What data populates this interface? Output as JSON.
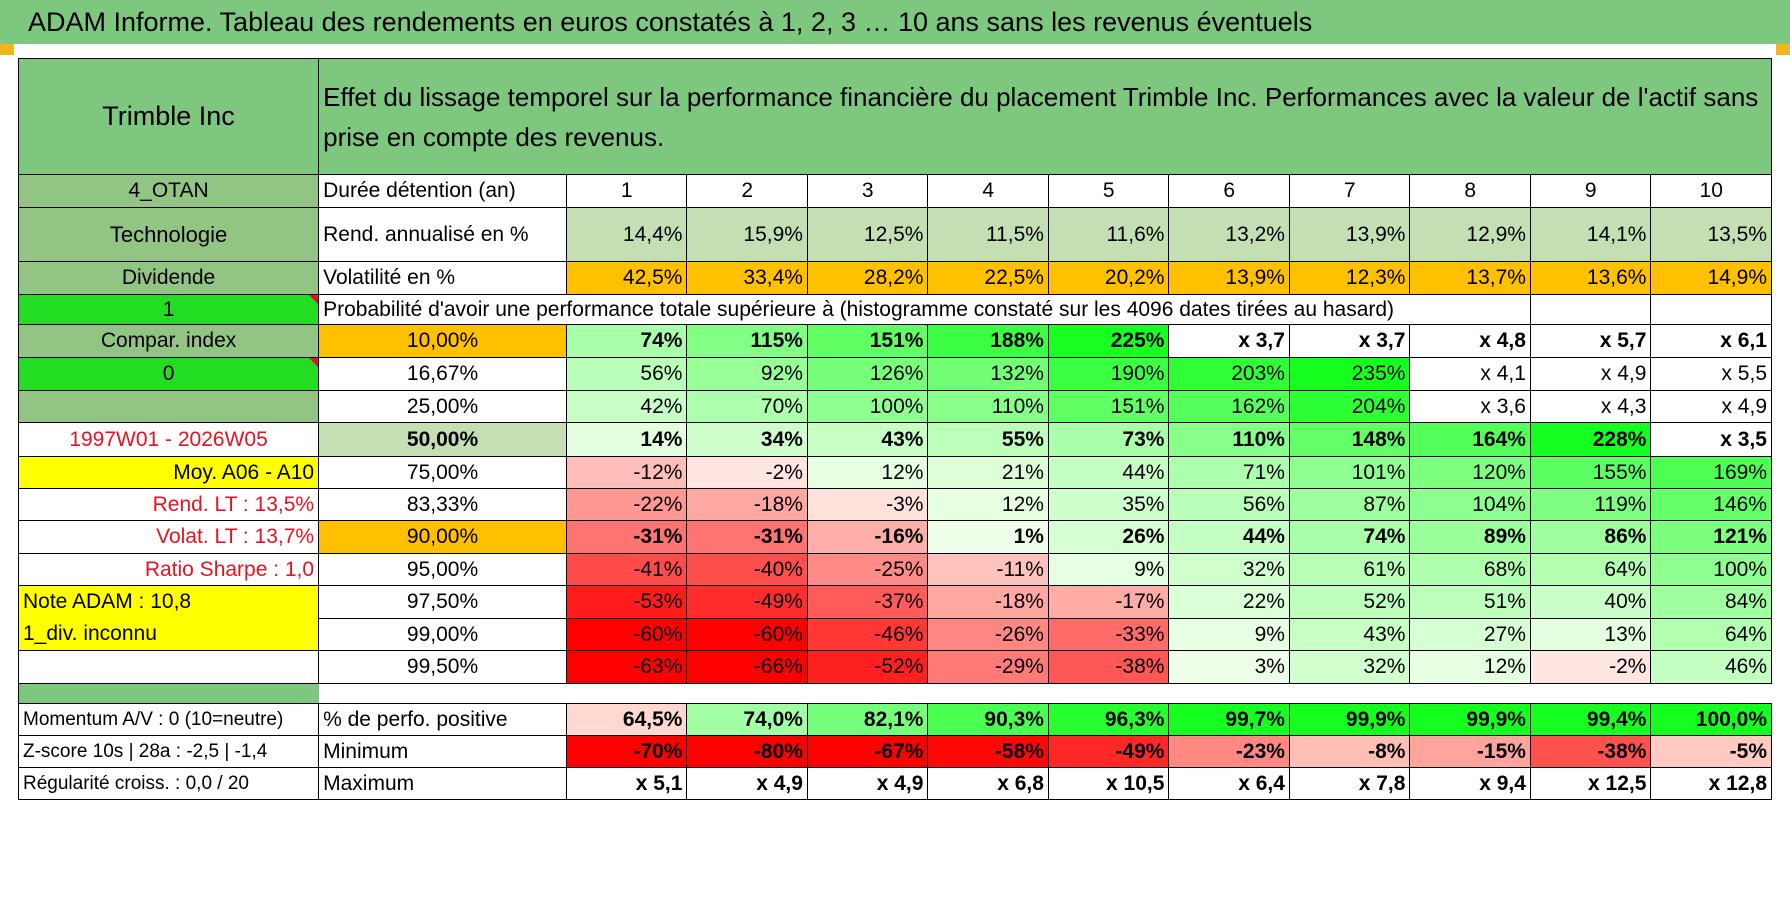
{
  "title": "ADAM Informe. Tableau des rendements en euros constatés à 1, 2, 3 … 10 ans sans les revenus éventuels",
  "asset": "Trimble Inc",
  "subtitle": "Effet du lissage temporel sur la performance financière du placement Trimble Inc. Performances avec la valeur de l'actif sans prise en compte des revenus.",
  "left": {
    "code": "4_OTAN",
    "sector": "Technologie",
    "dividend_label": "Dividende",
    "dividend_val": "1",
    "compar_label": "Compar. index",
    "compar_val": "0",
    "period": "1997W01 - 2026W05",
    "moy": "Moy. A06 - A10",
    "rend_lt": "Rend. LT :   13,5%",
    "volat_lt": "Volat. LT :   13,7%",
    "sharpe": "Ratio Sharpe :    1,0",
    "note": "Note ADAM : 10,8",
    "div": "1_div. inconnu"
  },
  "row_labels": {
    "duration": "Durée détention (an)",
    "rend": "Rend. annualisé en %",
    "volat": "Volatilité en %",
    "proba": "Probabilité d'avoir une performance totale supérieure à (histogramme constaté sur les 4096 dates tirées au hasard)"
  },
  "years": [
    "1",
    "2",
    "3",
    "4",
    "5",
    "6",
    "7",
    "8",
    "9",
    "10"
  ],
  "rend": [
    "14,4%",
    "15,9%",
    "12,5%",
    "11,5%",
    "11,6%",
    "13,2%",
    "13,9%",
    "12,9%",
    "14,1%",
    "13,5%"
  ],
  "volat": [
    "42,5%",
    "33,4%",
    "28,2%",
    "22,5%",
    "20,2%",
    "13,9%",
    "12,3%",
    "13,7%",
    "13,6%",
    "14,9%"
  ],
  "pct_rows": [
    {
      "p": "10,00%",
      "v": [
        "74%",
        "115%",
        "151%",
        "188%",
        "225%",
        "x 3,7",
        "x 3,7",
        "x 4,8",
        "x 5,7",
        "x 6,1"
      ]
    },
    {
      "p": "16,67%",
      "v": [
        "56%",
        "92%",
        "126%",
        "132%",
        "190%",
        "203%",
        "235%",
        "x 4,1",
        "x 4,9",
        "x 5,5"
      ]
    },
    {
      "p": "25,00%",
      "v": [
        "42%",
        "70%",
        "100%",
        "110%",
        "151%",
        "162%",
        "204%",
        "x 3,6",
        "x 4,3",
        "x 4,9"
      ]
    },
    {
      "p": "50,00%",
      "v": [
        "14%",
        "34%",
        "43%",
        "55%",
        "73%",
        "110%",
        "148%",
        "164%",
        "228%",
        "x 3,5"
      ]
    },
    {
      "p": "75,00%",
      "v": [
        "-12%",
        "-2%",
        "12%",
        "21%",
        "44%",
        "71%",
        "101%",
        "120%",
        "155%",
        "169%"
      ]
    },
    {
      "p": "83,33%",
      "v": [
        "-22%",
        "-18%",
        "-3%",
        "12%",
        "35%",
        "56%",
        "87%",
        "104%",
        "119%",
        "146%"
      ]
    },
    {
      "p": "90,00%",
      "v": [
        "-31%",
        "-31%",
        "-16%",
        "1%",
        "26%",
        "44%",
        "74%",
        "89%",
        "86%",
        "121%"
      ]
    },
    {
      "p": "95,00%",
      "v": [
        "-41%",
        "-40%",
        "-25%",
        "-11%",
        "9%",
        "32%",
        "61%",
        "68%",
        "64%",
        "100%"
      ]
    },
    {
      "p": "97,50%",
      "v": [
        "-53%",
        "-49%",
        "-37%",
        "-18%",
        "-17%",
        "22%",
        "52%",
        "51%",
        "40%",
        "84%"
      ]
    },
    {
      "p": "99,00%",
      "v": [
        "-60%",
        "-60%",
        "-46%",
        "-26%",
        "-33%",
        "9%",
        "43%",
        "27%",
        "13%",
        "64%"
      ]
    },
    {
      "p": "99,50%",
      "v": [
        "-63%",
        "-66%",
        "-52%",
        "-29%",
        "-38%",
        "3%",
        "32%",
        "12%",
        "-2%",
        "46%"
      ]
    }
  ],
  "bottom": {
    "momentum": "Momentum A/V : 0 (10=neutre)",
    "zscore": "Z-score 10s | 28a : -2,5 | -1,4",
    "regul": "Régularité croiss. : 0,0 / 20",
    "pos_label": "% de perfo. positive",
    "min_label": "Minimum",
    "max_label": "Maximum",
    "pos": [
      "64,5%",
      "74,0%",
      "82,1%",
      "90,3%",
      "96,3%",
      "99,7%",
      "99,9%",
      "99,9%",
      "99,4%",
      "100,0%"
    ],
    "min": [
      "-70%",
      "-80%",
      "-67%",
      "-58%",
      "-49%",
      "-23%",
      "-8%",
      "-15%",
      "-38%",
      "-5%"
    ],
    "max": [
      "x 5,1",
      "x 4,9",
      "x 4,9",
      "x 6,8",
      "x 10,5",
      "x 6,4",
      "x 7,8",
      "x 9,4",
      "x 12,5",
      "x 12,8"
    ]
  },
  "colors": {
    "header_green": "#7ec77e",
    "yellow": "#ffff00",
    "orange": "#ffc000",
    "red_text": "#e8121f"
  }
}
